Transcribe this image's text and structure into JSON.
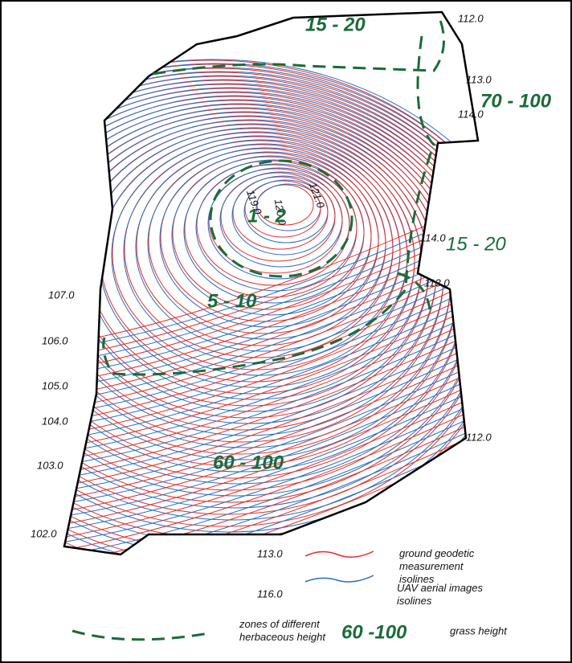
{
  "contour_labels": [
    "112.0",
    "113.0",
    "114.0",
    "119.0",
    "120.0",
    "121.0",
    "114.0",
    "113.0",
    "107.0",
    "106.0",
    "105.0",
    "104.0",
    "103.0",
    "102.0",
    "112.0"
  ],
  "zone_labels": [
    "15 - 20",
    "70 - 100",
    "1 - 2",
    "15 - 20",
    "5 - 10",
    "60 - 100"
  ],
  "legend": {
    "red_sample": "113.0",
    "red_text": "ground geodetic measurement isolines",
    "blue_sample": "116.0",
    "blue_text": "UAV aerial images isolines",
    "zone_text": "zones of different herbaceous height",
    "height_sample": "60 -100",
    "height_text": "grass height"
  }
}
